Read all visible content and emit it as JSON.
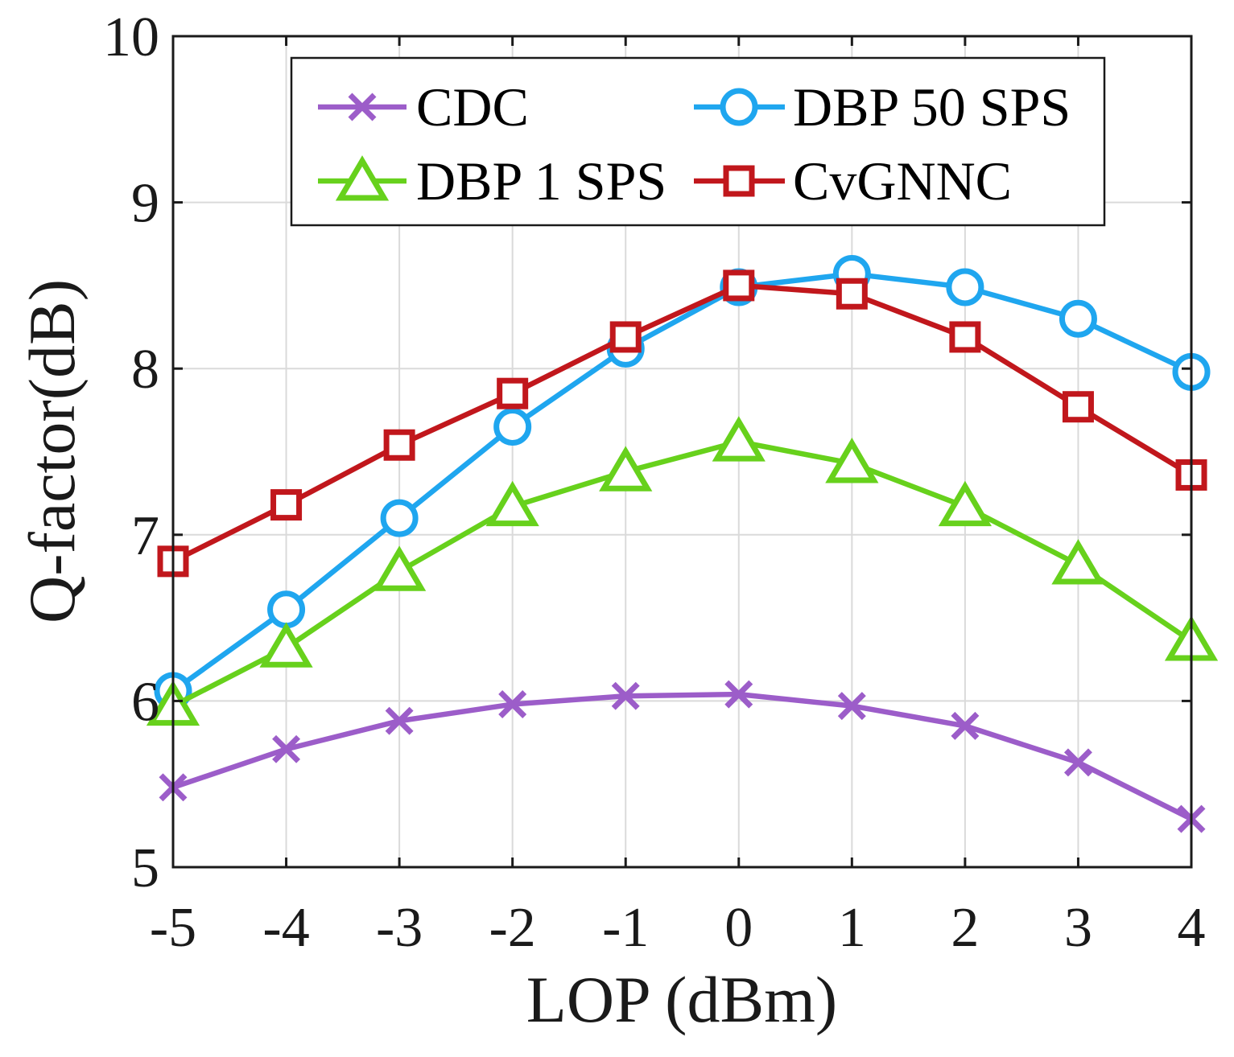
{
  "chart_data": {
    "type": "line",
    "xlabel": "LOP (dBm)",
    "ylabel": "Q-factor(dB)",
    "x": [
      -5,
      -4,
      -3,
      -2,
      -1,
      0,
      1,
      2,
      3,
      4
    ],
    "xlim": [
      -5,
      4
    ],
    "ylim": [
      5,
      10
    ],
    "xticks": [
      -5,
      -4,
      -3,
      -2,
      -1,
      0,
      1,
      2,
      3,
      4
    ],
    "xtick_labels": [
      "-5",
      "-4",
      "-3",
      "-2",
      "-1",
      "0",
      "1",
      "2",
      "3",
      "4"
    ],
    "yticks": [
      5,
      6,
      7,
      8,
      9,
      10
    ],
    "ytick_labels": [
      "5",
      "6",
      "7",
      "8",
      "9",
      "10"
    ],
    "grid": true,
    "legend_location": "north",
    "legend_columns": 2,
    "series": [
      {
        "name": "CDC",
        "color": "#9c5dc9",
        "marker": "cross",
        "values": [
          5.48,
          5.71,
          5.88,
          5.98,
          6.03,
          6.04,
          5.97,
          5.85,
          5.63,
          5.29
        ]
      },
      {
        "name": "DBP 50 SPS",
        "color": "#1fa6ef",
        "marker": "circle",
        "values": [
          6.06,
          6.55,
          7.1,
          7.65,
          8.12,
          8.49,
          8.57,
          8.49,
          8.3,
          7.98
        ]
      },
      {
        "name": "DBP 1 SPS",
        "color": "#67d11c",
        "marker": "triangle",
        "values": [
          5.97,
          6.32,
          6.78,
          7.17,
          7.38,
          7.56,
          7.43,
          7.17,
          6.82,
          6.36
        ]
      },
      {
        "name": "CvGNNC",
        "color": "#c1171c",
        "marker": "square",
        "values": [
          6.84,
          7.18,
          7.54,
          7.85,
          8.19,
          8.5,
          8.45,
          8.19,
          7.77,
          7.36
        ]
      }
    ]
  }
}
